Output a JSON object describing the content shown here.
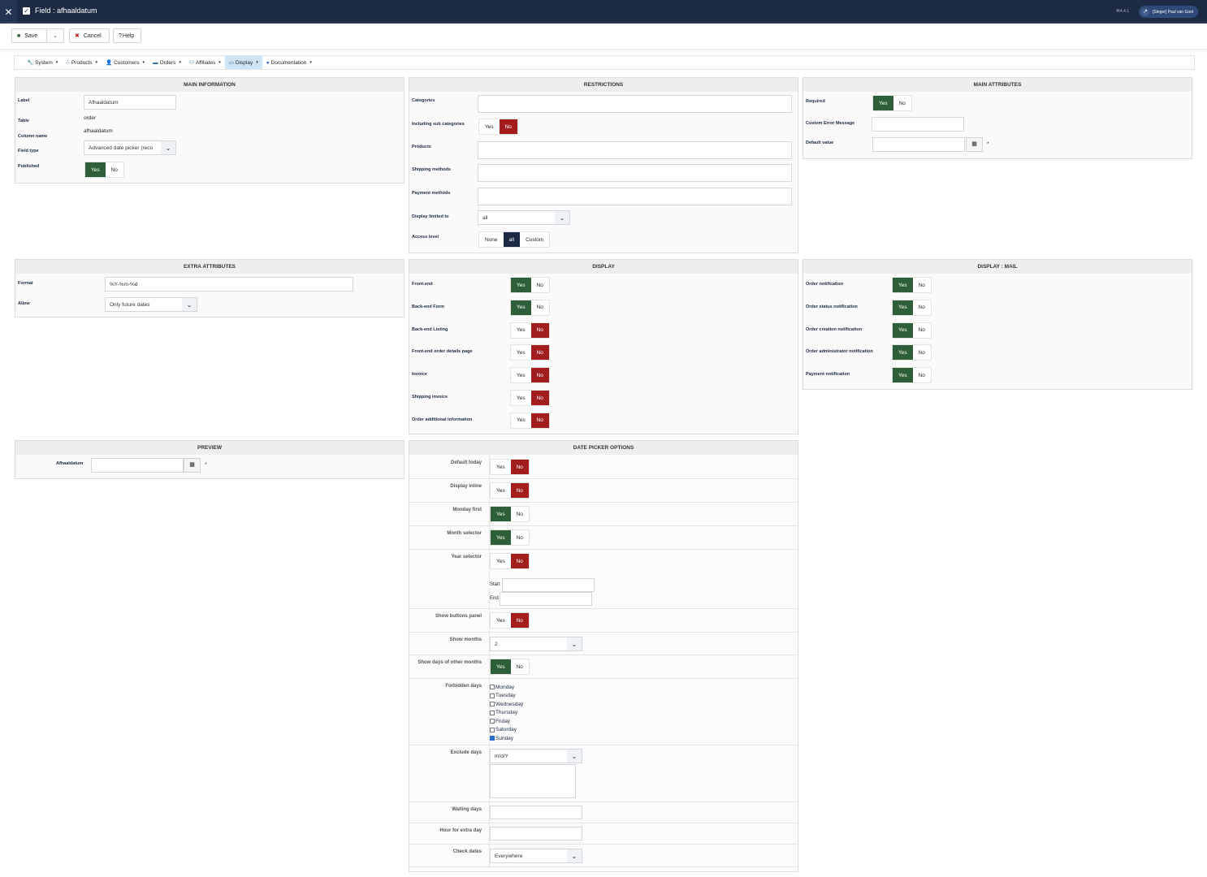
{
  "header": {
    "title": "Field : afhaaldatum",
    "version": "⌘4.4.1",
    "user": "[Sleger] Paul van Gool"
  },
  "toolbar": {
    "save": "Save",
    "cancel": "Cancel",
    "help": "Help"
  },
  "menu": [
    {
      "label": "System",
      "icon": "wrench-icon",
      "g": "🔧"
    },
    {
      "label": "Products",
      "icon": "cubes-icon",
      "g": "⛬"
    },
    {
      "label": "Customers",
      "icon": "user-icon",
      "g": "👤"
    },
    {
      "label": "Orders",
      "icon": "credit-card-icon",
      "g": "▬"
    },
    {
      "label": "Affiliates",
      "icon": "group-icon",
      "g": "⚇"
    },
    {
      "label": "Display",
      "icon": "monitor-icon",
      "g": "▭",
      "active": true
    },
    {
      "label": "Documentation",
      "icon": "help-circle-icon",
      "g": "●"
    }
  ],
  "main_info": {
    "title": "MAIN INFORMATION",
    "label_label": "Label",
    "label_value": "Afhaaldatum",
    "table_label": "Table",
    "table_value": "order",
    "column_label": "Column name",
    "column_value": "afhaaldatum",
    "type_label": "Field type",
    "type_value": "Advanced date picker (reco",
    "published_label": "Published",
    "published": "Yes"
  },
  "restrictions": {
    "title": "RESTRICTIONS",
    "categories": "Categories",
    "sub": "Including sub categories",
    "sub_value": "No",
    "products": "Products",
    "shipping": "Shipping methods",
    "payment": "Payment methods",
    "display_limited": "Display limited to",
    "display_limited_value": "all",
    "access": "Access level",
    "access_options": [
      "None",
      "all",
      "Custom"
    ],
    "access_value": "all"
  },
  "main_attr": {
    "title": "MAIN ATTRIBUTES",
    "required": "Required",
    "required_value": "Yes",
    "error": "Custom Error Message",
    "default": "Default value",
    "star": "*"
  },
  "extra": {
    "title": "EXTRA ATTRIBUTES",
    "format": "Format",
    "format_value": "%Y-%m-%d",
    "allow": "Allow",
    "allow_value": "Only future dates"
  },
  "display": {
    "title": "DISPLAY",
    "rows": [
      {
        "label": "Front-end",
        "value": "Yes"
      },
      {
        "label": "Back-end Form",
        "value": "Yes"
      },
      {
        "label": "Back-end Listing",
        "value": "No"
      },
      {
        "label": "Front-end order details page",
        "value": "No"
      },
      {
        "label": "Invoice",
        "value": "No"
      },
      {
        "label": "Shipping invoice",
        "value": "No"
      },
      {
        "label": "Order additional information",
        "value": "No"
      }
    ]
  },
  "mail": {
    "title": "DISPLAY : MAIL",
    "rows": [
      {
        "label": "Order notification",
        "value": "Yes"
      },
      {
        "label": "Order status notification",
        "value": "Yes"
      },
      {
        "label": "Order creation notification",
        "value": "Yes"
      },
      {
        "label": "Order administrator notification",
        "value": "Yes"
      },
      {
        "label": "Payment notification",
        "value": "Yes"
      }
    ]
  },
  "preview": {
    "title": "PREVIEW",
    "label": "Afhaaldatum",
    "star": "*"
  },
  "datepicker": {
    "title": "DATE PICKER OPTIONS",
    "default_today": "Default today",
    "default_today_value": "No",
    "display_inline": "Display inline",
    "display_inline_value": "No",
    "monday_first": "Monday first",
    "monday_first_value": "Yes",
    "month_selector": "Month selector",
    "month_selector_value": "Yes",
    "year_selector": "Year selector",
    "year_selector_value": "No",
    "start": "Start",
    "end": "End",
    "show_buttons": "Show buttons panel",
    "show_buttons_value": "No",
    "show_months": "Show months",
    "show_months_value": "2",
    "show_days": "Show days of other months",
    "show_days_value": "Yes",
    "forbidden": "Forbidden days",
    "days": [
      {
        "label": "Monday",
        "checked": false
      },
      {
        "label": "Tuesday",
        "checked": false
      },
      {
        "label": "Wednesday",
        "checked": false
      },
      {
        "label": "Thursday",
        "checked": false
      },
      {
        "label": "Friday",
        "checked": false
      },
      {
        "label": "Saturday",
        "checked": false
      },
      {
        "label": "Sunday",
        "checked": true
      }
    ],
    "exclude": "Exclude days",
    "exclude_format": "m/d/Y",
    "waiting": "Waiting days",
    "hour": "Hour for extra day",
    "check": "Check dates",
    "check_value": "Everywhere"
  },
  "yes": "Yes",
  "no": "No",
  "colors": {
    "topbar": "#1c2a43",
    "yes_active": "#2f5f3a",
    "no_active": "#a21d1d"
  }
}
